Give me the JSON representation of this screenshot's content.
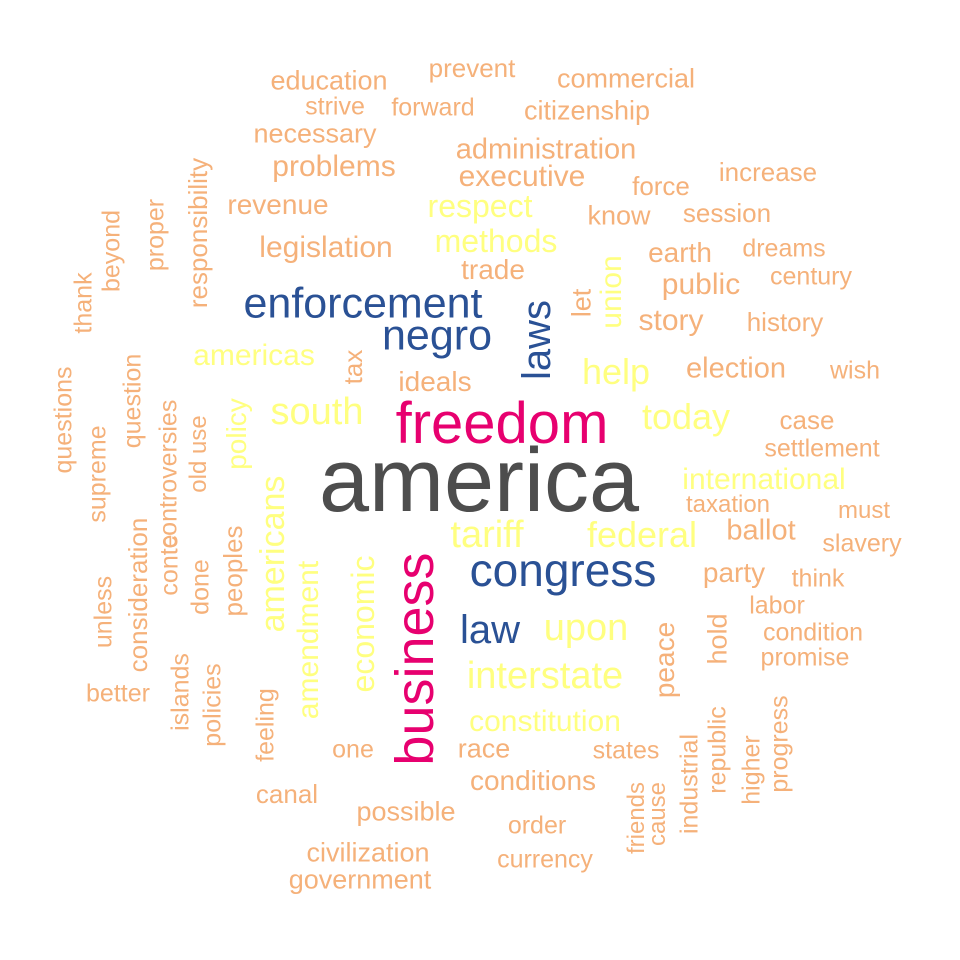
{
  "palette": {
    "level1": "#4d4d4d",
    "level2": "#e7006f",
    "level3": "#2a5195",
    "level4": "#ffff80",
    "level5": "#f5b17a"
  },
  "words": [
    {
      "text": "america",
      "level": "level1",
      "rotated": false
    },
    {
      "text": "freedom",
      "level": "level2",
      "rotated": false
    },
    {
      "text": "business",
      "level": "level2",
      "rotated": true
    },
    {
      "text": "enforcement",
      "level": "level3",
      "rotated": false
    },
    {
      "text": "negro",
      "level": "level3",
      "rotated": false
    },
    {
      "text": "laws",
      "level": "level3",
      "rotated": true
    },
    {
      "text": "congress",
      "level": "level3",
      "rotated": false
    },
    {
      "text": "law",
      "level": "level3",
      "rotated": false
    },
    {
      "text": "respect",
      "level": "level4",
      "rotated": false
    },
    {
      "text": "methods",
      "level": "level4",
      "rotated": false
    },
    {
      "text": "americas",
      "level": "level4",
      "rotated": false
    },
    {
      "text": "south",
      "level": "level4",
      "rotated": false
    },
    {
      "text": "help",
      "level": "level4",
      "rotated": false
    },
    {
      "text": "today",
      "level": "level4",
      "rotated": false
    },
    {
      "text": "international",
      "level": "level4",
      "rotated": false
    },
    {
      "text": "tariff",
      "level": "level4",
      "rotated": false
    },
    {
      "text": "federal",
      "level": "level4",
      "rotated": false
    },
    {
      "text": "upon",
      "level": "level4",
      "rotated": false
    },
    {
      "text": "interstate",
      "level": "level4",
      "rotated": false
    },
    {
      "text": "constitution",
      "level": "level4",
      "rotated": false
    },
    {
      "text": "union",
      "level": "level4",
      "rotated": true
    },
    {
      "text": "policy",
      "level": "level4",
      "rotated": true
    },
    {
      "text": "americans",
      "level": "level4",
      "rotated": true
    },
    {
      "text": "amendment",
      "level": "level4",
      "rotated": true
    },
    {
      "text": "economic",
      "level": "level4",
      "rotated": true
    },
    {
      "text": "education",
      "level": "level5",
      "rotated": false
    },
    {
      "text": "prevent",
      "level": "level5",
      "rotated": false
    },
    {
      "text": "commercial",
      "level": "level5",
      "rotated": false
    },
    {
      "text": "strive",
      "level": "level5",
      "rotated": false
    },
    {
      "text": "forward",
      "level": "level5",
      "rotated": false
    },
    {
      "text": "citizenship",
      "level": "level5",
      "rotated": false
    },
    {
      "text": "necessary",
      "level": "level5",
      "rotated": false
    },
    {
      "text": "administration",
      "level": "level5",
      "rotated": false
    },
    {
      "text": "problems",
      "level": "level5",
      "rotated": false
    },
    {
      "text": "executive",
      "level": "level5",
      "rotated": false
    },
    {
      "text": "increase",
      "level": "level5",
      "rotated": false
    },
    {
      "text": "force",
      "level": "level5",
      "rotated": false
    },
    {
      "text": "revenue",
      "level": "level5",
      "rotated": false
    },
    {
      "text": "know",
      "level": "level5",
      "rotated": false
    },
    {
      "text": "session",
      "level": "level5",
      "rotated": false
    },
    {
      "text": "legislation",
      "level": "level5",
      "rotated": false
    },
    {
      "text": "earth",
      "level": "level5",
      "rotated": false
    },
    {
      "text": "dreams",
      "level": "level5",
      "rotated": false
    },
    {
      "text": "trade",
      "level": "level5",
      "rotated": false
    },
    {
      "text": "public",
      "level": "level5",
      "rotated": false
    },
    {
      "text": "century",
      "level": "level5",
      "rotated": false
    },
    {
      "text": "story",
      "level": "level5",
      "rotated": false
    },
    {
      "text": "history",
      "level": "level5",
      "rotated": false
    },
    {
      "text": "election",
      "level": "level5",
      "rotated": false
    },
    {
      "text": "wish",
      "level": "level5",
      "rotated": false
    },
    {
      "text": "ideals",
      "level": "level5",
      "rotated": false
    },
    {
      "text": "case",
      "level": "level5",
      "rotated": false
    },
    {
      "text": "settlement",
      "level": "level5",
      "rotated": false
    },
    {
      "text": "taxation",
      "level": "level5",
      "rotated": false
    },
    {
      "text": "must",
      "level": "level5",
      "rotated": false
    },
    {
      "text": "ballot",
      "level": "level5",
      "rotated": false
    },
    {
      "text": "slavery",
      "level": "level5",
      "rotated": false
    },
    {
      "text": "party",
      "level": "level5",
      "rotated": false
    },
    {
      "text": "think",
      "level": "level5",
      "rotated": false
    },
    {
      "text": "labor",
      "level": "level5",
      "rotated": false
    },
    {
      "text": "condition",
      "level": "level5",
      "rotated": false
    },
    {
      "text": "promise",
      "level": "level5",
      "rotated": false
    },
    {
      "text": "better",
      "level": "level5",
      "rotated": false
    },
    {
      "text": "one",
      "level": "level5",
      "rotated": false
    },
    {
      "text": "race",
      "level": "level5",
      "rotated": false
    },
    {
      "text": "states",
      "level": "level5",
      "rotated": false
    },
    {
      "text": "conditions",
      "level": "level5",
      "rotated": false
    },
    {
      "text": "canal",
      "level": "level5",
      "rotated": false
    },
    {
      "text": "possible",
      "level": "level5",
      "rotated": false
    },
    {
      "text": "order",
      "level": "level5",
      "rotated": false
    },
    {
      "text": "civilization",
      "level": "level5",
      "rotated": false
    },
    {
      "text": "currency",
      "level": "level5",
      "rotated": false
    },
    {
      "text": "government",
      "level": "level5",
      "rotated": false
    },
    {
      "text": "responsibility",
      "level": "level5",
      "rotated": true
    },
    {
      "text": "proper",
      "level": "level5",
      "rotated": true
    },
    {
      "text": "beyond",
      "level": "level5",
      "rotated": true
    },
    {
      "text": "thank",
      "level": "level5",
      "rotated": true
    },
    {
      "text": "questions",
      "level": "level5",
      "rotated": true
    },
    {
      "text": "supreme",
      "level": "level5",
      "rotated": true
    },
    {
      "text": "question",
      "level": "level5",
      "rotated": true
    },
    {
      "text": "controversies",
      "level": "level5",
      "rotated": true
    },
    {
      "text": "old use",
      "level": "level5",
      "rotated": true
    },
    {
      "text": "tax",
      "level": "level5",
      "rotated": true
    },
    {
      "text": "let",
      "level": "level5",
      "rotated": true
    },
    {
      "text": "unless",
      "level": "level5",
      "rotated": true
    },
    {
      "text": "consideration",
      "level": "level5",
      "rotated": true
    },
    {
      "text": "conte",
      "level": "level5",
      "rotated": true
    },
    {
      "text": "done",
      "level": "level5",
      "rotated": true
    },
    {
      "text": "peoples",
      "level": "level5",
      "rotated": true
    },
    {
      "text": "islands",
      "level": "level5",
      "rotated": true
    },
    {
      "text": "policies",
      "level": "level5",
      "rotated": true
    },
    {
      "text": "feeling",
      "level": "level5",
      "rotated": true
    },
    {
      "text": "peace",
      "level": "level5",
      "rotated": true
    },
    {
      "text": "hold",
      "level": "level5",
      "rotated": true
    },
    {
      "text": "friends",
      "level": "level5",
      "rotated": true
    },
    {
      "text": "cause",
      "level": "level5",
      "rotated": true
    },
    {
      "text": "industrial",
      "level": "level5",
      "rotated": true
    },
    {
      "text": "republic",
      "level": "level5",
      "rotated": true
    },
    {
      "text": "higher",
      "level": "level5",
      "rotated": true
    },
    {
      "text": "progress",
      "level": "level5",
      "rotated": true
    }
  ]
}
